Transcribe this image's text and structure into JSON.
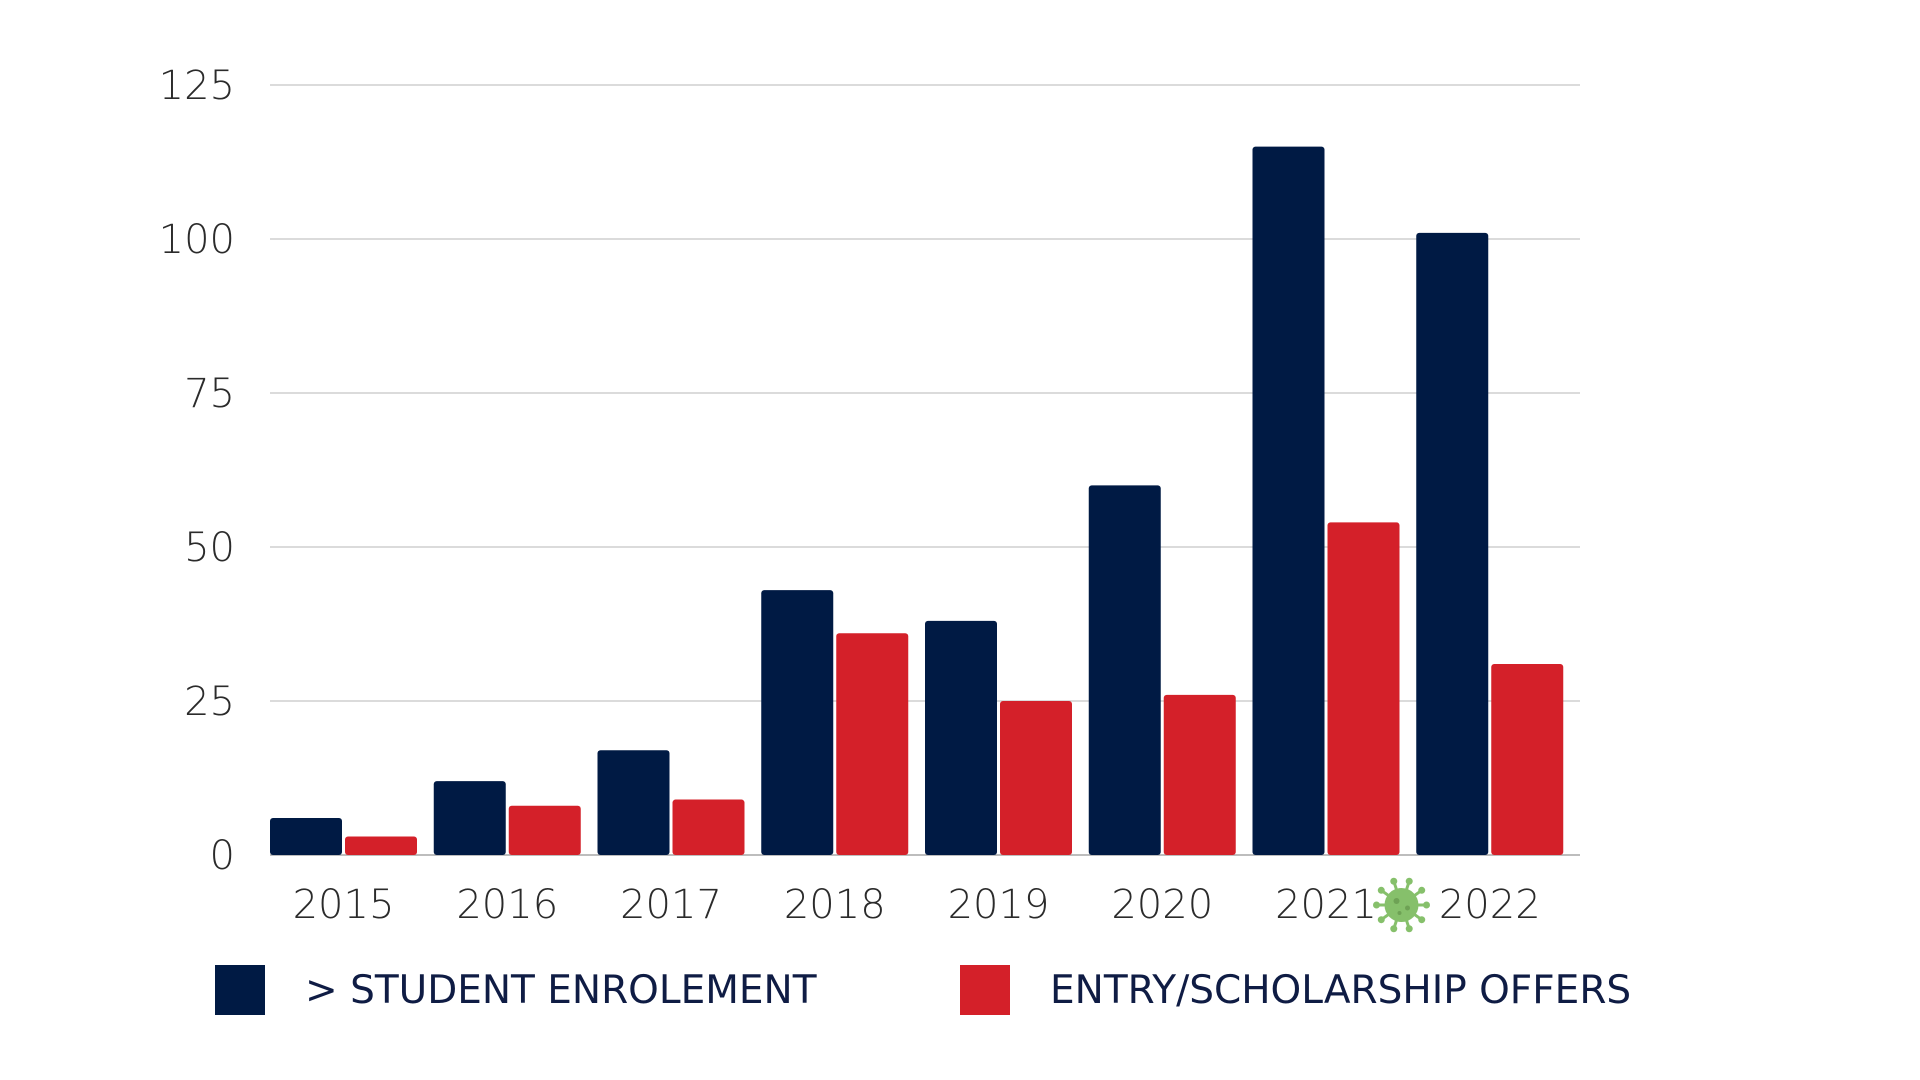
{
  "chart_data": {
    "type": "bar",
    "categories": [
      "2015",
      "2016",
      "2017",
      "2018",
      "2019",
      "2020",
      "2021",
      "2022"
    ],
    "series": [
      {
        "name": "> STUDENT ENROLEMENT",
        "color": "#001a44",
        "values": [
          6,
          12,
          17,
          43,
          38,
          60,
          115,
          101
        ]
      },
      {
        "name": "ENTRY/SCHOLARSHIP OFFERS",
        "color": "#d42029",
        "values": [
          3,
          8,
          9,
          36,
          25,
          26,
          54,
          31
        ]
      }
    ],
    "yticks": [
      "0",
      "25",
      "50",
      "75",
      "100",
      "125"
    ],
    "ylim": [
      0,
      125
    ],
    "grid": true,
    "legend_position": "bottom",
    "annotation_icon": {
      "name": "virus-icon",
      "category": "2021",
      "color": "#86c06b"
    }
  }
}
